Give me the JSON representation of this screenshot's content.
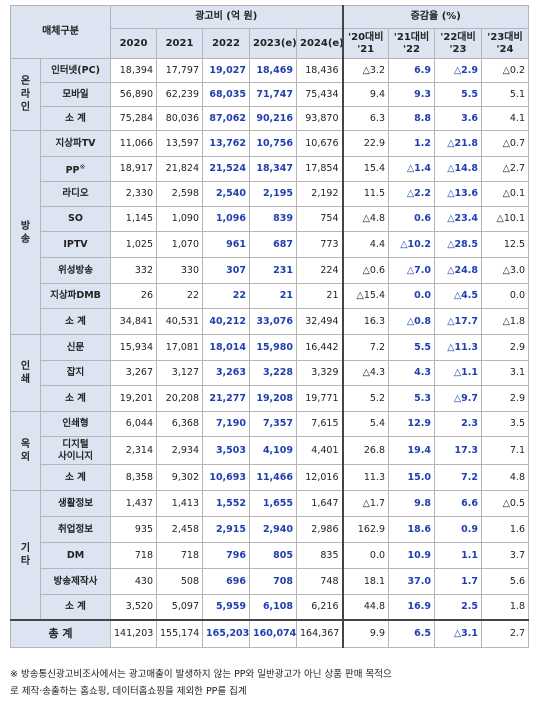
{
  "header": {
    "media_type": "매체구분",
    "ad_cost": "광고비 (억 원)",
    "growth_rate": "증감율 (%)",
    "years": [
      "2020",
      "2021",
      "2022",
      "2023(e)",
      "2024(e)"
    ],
    "changes": [
      {
        "top": "'20대비",
        "bottom": "'21"
      },
      {
        "top": "'21대비",
        "bottom": "'22"
      },
      {
        "top": "'22대비",
        "bottom": "'23"
      },
      {
        "top": "'23대비",
        "bottom": "'24"
      }
    ]
  },
  "groups": [
    {
      "category": "온라인",
      "rows": [
        {
          "name": "인터넷(PC)",
          "values": [
            "18,394",
            "17,797",
            "19,027",
            "18,469",
            "18,436"
          ],
          "changes": [
            "△3.2",
            "6.9",
            "△2.9",
            "△0.2"
          ]
        },
        {
          "name": "모바일",
          "values": [
            "56,890",
            "62,239",
            "68,035",
            "71,747",
            "75,434"
          ],
          "changes": [
            "9.4",
            "9.3",
            "5.5",
            "5.1"
          ]
        },
        {
          "name": "소 계",
          "values": [
            "75,284",
            "80,036",
            "87,062",
            "90,216",
            "93,870"
          ],
          "changes": [
            "6.3",
            "8.8",
            "3.6",
            "4.1"
          ]
        }
      ]
    },
    {
      "category": "방송",
      "rows": [
        {
          "name": "지상파TV",
          "values": [
            "11,066",
            "13,597",
            "13,762",
            "10,756",
            "10,676"
          ],
          "changes": [
            "22.9",
            "1.2",
            "△21.8",
            "△0.7"
          ]
        },
        {
          "name": "PP",
          "name_sup": "※",
          "values": [
            "18,917",
            "21,824",
            "21,524",
            "18,347",
            "17,854"
          ],
          "changes": [
            "15.4",
            "△1.4",
            "△14.8",
            "△2.7"
          ]
        },
        {
          "name": "라디오",
          "values": [
            "2,330",
            "2,598",
            "2,540",
            "2,195",
            "2,192"
          ],
          "changes": [
            "11.5",
            "△2.2",
            "△13.6",
            "△0.1"
          ]
        },
        {
          "name": "SO",
          "values": [
            "1,145",
            "1,090",
            "1,096",
            "839",
            "754"
          ],
          "changes": [
            "△4.8",
            "0.6",
            "△23.4",
            "△10.1"
          ]
        },
        {
          "name": "IPTV",
          "values": [
            "1,025",
            "1,070",
            "961",
            "687",
            "773"
          ],
          "changes": [
            "4.4",
            "△10.2",
            "△28.5",
            "12.5"
          ]
        },
        {
          "name": "위성방송",
          "values": [
            "332",
            "330",
            "307",
            "231",
            "224"
          ],
          "changes": [
            "△0.6",
            "△7.0",
            "△24.8",
            "△3.0"
          ]
        },
        {
          "name": "지상파DMB",
          "values": [
            "26",
            "22",
            "22",
            "21",
            "21"
          ],
          "changes": [
            "△15.4",
            "0.0",
            "△4.5",
            "0.0"
          ]
        },
        {
          "name": "소 계",
          "values": [
            "34,841",
            "40,531",
            "40,212",
            "33,076",
            "32,494"
          ],
          "changes": [
            "16.3",
            "△0.8",
            "△17.7",
            "△1.8"
          ]
        }
      ]
    },
    {
      "category": "인쇄",
      "rows": [
        {
          "name": "신문",
          "values": [
            "15,934",
            "17,081",
            "18,014",
            "15,980",
            "16,442"
          ],
          "changes": [
            "7.2",
            "5.5",
            "△11.3",
            "2.9"
          ]
        },
        {
          "name": "잡지",
          "values": [
            "3,267",
            "3,127",
            "3,263",
            "3,228",
            "3,329"
          ],
          "changes": [
            "△4.3",
            "4.3",
            "△1.1",
            "3.1"
          ]
        },
        {
          "name": "소 계",
          "values": [
            "19,201",
            "20,208",
            "21,277",
            "19,208",
            "19,771"
          ],
          "changes": [
            "5.2",
            "5.3",
            "△9.7",
            "2.9"
          ]
        }
      ]
    },
    {
      "category": "옥외",
      "rows": [
        {
          "name": "인쇄형",
          "values": [
            "6,044",
            "6,368",
            "7,190",
            "7,357",
            "7,615"
          ],
          "changes": [
            "5.4",
            "12.9",
            "2.3",
            "3.5"
          ]
        },
        {
          "name": "디지털",
          "name2": "사이니지",
          "values": [
            "2,314",
            "2,934",
            "3,503",
            "4,109",
            "4,401"
          ],
          "changes": [
            "26.8",
            "19.4",
            "17.3",
            "7.1"
          ]
        },
        {
          "name": "소 계",
          "values": [
            "8,358",
            "9,302",
            "10,693",
            "11,466",
            "12,016"
          ],
          "changes": [
            "11.3",
            "15.0",
            "7.2",
            "4.8"
          ]
        }
      ]
    },
    {
      "category": "기타",
      "rows": [
        {
          "name": "생활정보",
          "values": [
            "1,437",
            "1,413",
            "1,552",
            "1,655",
            "1,647"
          ],
          "changes": [
            "△1.7",
            "9.8",
            "6.6",
            "△0.5"
          ]
        },
        {
          "name": "취업정보",
          "values": [
            "935",
            "2,458",
            "2,915",
            "2,940",
            "2,986"
          ],
          "changes": [
            "162.9",
            "18.6",
            "0.9",
            "1.6"
          ]
        },
        {
          "name": "DM",
          "values": [
            "718",
            "718",
            "796",
            "805",
            "835"
          ],
          "changes": [
            "0.0",
            "10.9",
            "1.1",
            "3.7"
          ]
        },
        {
          "name": "방송제작사",
          "values": [
            "430",
            "508",
            "696",
            "708",
            "748"
          ],
          "changes": [
            "18.1",
            "37.0",
            "1.7",
            "5.6"
          ]
        },
        {
          "name": "소 계",
          "values": [
            "3,520",
            "5,097",
            "5,959",
            "6,108",
            "6,216"
          ],
          "changes": [
            "44.8",
            "16.9",
            "2.5",
            "1.8"
          ]
        }
      ]
    }
  ],
  "total": {
    "name": "총 계",
    "values": [
      "141,203",
      "155,174",
      "165,203",
      "160,074",
      "164,367"
    ],
    "changes": [
      "9.9",
      "6.5",
      "△3.1",
      "2.7"
    ]
  },
  "footnote": {
    "line1": "※ 방송통신광고비조사에서는 광고매출이 발생하지 않는 PP와 일반광고가 아닌 상품 판매 목적으",
    "line2": "로 제작·송출하는 홈쇼핑, 데이터홈쇼핑을 제외한 PP를 집계"
  },
  "colors": {
    "header_bg": "#dbe4f0",
    "highlight_text": "#1f3fb0"
  }
}
